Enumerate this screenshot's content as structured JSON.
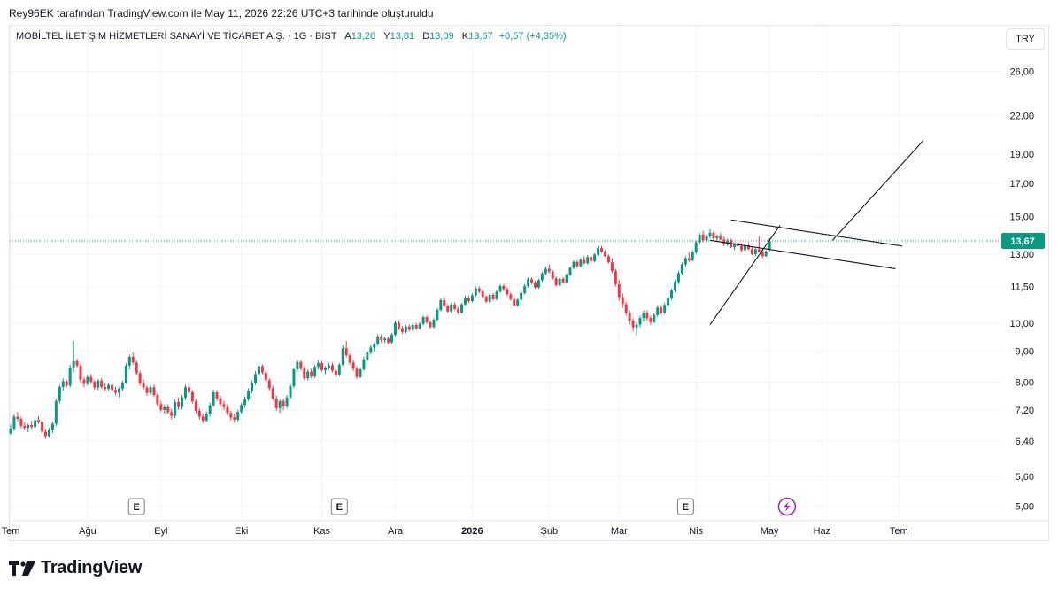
{
  "caption": "Rey96EK tarafından TradingView.com ile May 11, 2026 22:26 UTC+3 tarihinde oluşturuldu",
  "legend": {
    "name": "MOBİLTEL İLETİŞİM HİZMETLERİ SANAYİ VE TİCARET A.Ş. · 1G · BIST",
    "open_label": "A",
    "open": "13,20",
    "high_label": "Y",
    "high": "13,81",
    "low_label": "D",
    "low": "13,09",
    "close_label": "K",
    "close": "13,67",
    "change": "+0,57 (+4,35%)"
  },
  "currency": "TRY",
  "last_price_label": "13,67",
  "logo_text": "TradingView",
  "colors": {
    "up": "#089981",
    "down": "#f23645",
    "grid": "#f0f3fa",
    "text": "#131722",
    "event": "#9c27b0"
  },
  "chart_data": {
    "type": "candlestick",
    "scale": "log",
    "ylim": [
      4.7,
      29.0
    ],
    "y_ticks": [
      {
        "value": 26.0,
        "label": "26,00"
      },
      {
        "value": 22.0,
        "label": "22,00"
      },
      {
        "value": 19.0,
        "label": "19,00"
      },
      {
        "value": 17.0,
        "label": "17,00"
      },
      {
        "value": 15.0,
        "label": "15,00"
      },
      {
        "value": 13.0,
        "label": "13,00"
      },
      {
        "value": 11.5,
        "label": "11,50"
      },
      {
        "value": 10.0,
        "label": "10,00"
      },
      {
        "value": 9.0,
        "label": "9,00"
      },
      {
        "value": 8.0,
        "label": "8,00"
      },
      {
        "value": 7.2,
        "label": "7,20"
      },
      {
        "value": 6.4,
        "label": "6,40"
      },
      {
        "value": 5.6,
        "label": "5,60"
      },
      {
        "value": 5.0,
        "label": "5,00"
      }
    ],
    "x_ticks": [
      {
        "label": "Tem",
        "index": 0
      },
      {
        "label": "Ağu",
        "index": 22
      },
      {
        "label": "Eyl",
        "index": 43
      },
      {
        "label": "Eki",
        "index": 66
      },
      {
        "label": "Kas",
        "index": 89
      },
      {
        "label": "Ara",
        "index": 110
      },
      {
        "label": "2026",
        "index": 132,
        "bold": true
      },
      {
        "label": "Şub",
        "index": 154
      },
      {
        "label": "Mar",
        "index": 174
      },
      {
        "label": "Nis",
        "index": 196
      },
      {
        "label": "May",
        "index": 217
      },
      {
        "label": "Haz",
        "index": 232
      },
      {
        "label": "Tem",
        "index": 254
      }
    ],
    "events": [
      {
        "type": "E",
        "index": 36
      },
      {
        "type": "E",
        "index": 94
      },
      {
        "type": "E",
        "index": 193
      },
      {
        "type": "flash",
        "index": 222
      }
    ],
    "last_price": 13.67,
    "candles": [
      [
        6.59,
        6.82,
        6.55,
        6.71
      ],
      [
        6.71,
        7.08,
        6.65,
        7.02
      ],
      [
        7.02,
        7.15,
        6.9,
        6.96
      ],
      [
        6.96,
        7.02,
        6.72,
        6.78
      ],
      [
        6.78,
        6.88,
        6.67,
        6.73
      ],
      [
        6.73,
        6.84,
        6.62,
        6.8
      ],
      [
        6.8,
        6.91,
        6.7,
        6.75
      ],
      [
        6.75,
        6.98,
        6.72,
        6.93
      ],
      [
        6.93,
        7.03,
        6.83,
        6.88
      ],
      [
        6.88,
        6.95,
        6.59,
        6.63
      ],
      [
        6.63,
        6.7,
        6.45,
        6.52
      ],
      [
        6.52,
        6.73,
        6.48,
        6.68
      ],
      [
        6.68,
        6.88,
        6.6,
        6.83
      ],
      [
        6.83,
        7.5,
        6.78,
        7.45
      ],
      [
        7.45,
        7.92,
        7.38,
        7.86
      ],
      [
        7.86,
        8.12,
        7.75,
        8.03
      ],
      [
        8.03,
        8.08,
        7.85,
        7.9
      ],
      [
        7.9,
        8.55,
        7.84,
        8.44
      ],
      [
        8.44,
        9.35,
        8.3,
        8.67
      ],
      [
        8.67,
        8.75,
        8.45,
        8.52
      ],
      [
        8.52,
        8.6,
        8.0,
        8.08
      ],
      [
        8.08,
        8.15,
        7.85,
        7.95
      ],
      [
        7.95,
        8.22,
        7.9,
        8.16
      ],
      [
        8.16,
        8.25,
        7.95,
        8.01
      ],
      [
        8.01,
        8.06,
        7.78,
        7.84
      ],
      [
        7.84,
        8.1,
        7.75,
        8.05
      ],
      [
        8.05,
        8.12,
        7.8,
        7.86
      ],
      [
        7.86,
        7.95,
        7.74,
        7.8
      ],
      [
        7.8,
        7.98,
        7.75,
        7.92
      ],
      [
        7.92,
        7.98,
        7.72,
        7.77
      ],
      [
        7.77,
        7.86,
        7.62,
        7.69
      ],
      [
        7.69,
        7.85,
        7.55,
        7.8
      ],
      [
        7.8,
        8.05,
        7.74,
        7.99
      ],
      [
        7.99,
        8.6,
        7.95,
        8.52
      ],
      [
        8.52,
        8.88,
        8.4,
        8.81
      ],
      [
        8.81,
        8.95,
        8.55,
        8.62
      ],
      [
        8.62,
        8.7,
        8.2,
        8.28
      ],
      [
        8.28,
        8.35,
        7.9,
        7.96
      ],
      [
        7.96,
        8.08,
        7.78,
        7.84
      ],
      [
        7.84,
        7.9,
        7.6,
        7.68
      ],
      [
        7.68,
        7.92,
        7.62,
        7.85
      ],
      [
        7.85,
        7.94,
        7.56,
        7.62
      ],
      [
        7.62,
        7.68,
        7.3,
        7.36
      ],
      [
        7.36,
        7.45,
        7.15,
        7.2
      ],
      [
        7.2,
        7.34,
        7.1,
        7.28
      ],
      [
        7.28,
        7.36,
        7.08,
        7.14
      ],
      [
        7.14,
        7.22,
        6.95,
        7.04
      ],
      [
        7.04,
        7.5,
        6.98,
        7.42
      ],
      [
        7.42,
        7.55,
        7.2,
        7.28
      ],
      [
        7.28,
        7.62,
        7.22,
        7.55
      ],
      [
        7.55,
        7.92,
        7.48,
        7.85
      ],
      [
        7.85,
        7.95,
        7.62,
        7.7
      ],
      [
        7.7,
        7.76,
        7.38,
        7.44
      ],
      [
        7.44,
        7.5,
        7.1,
        7.18
      ],
      [
        7.18,
        7.25,
        6.95,
        7.02
      ],
      [
        7.02,
        7.1,
        6.85,
        6.92
      ],
      [
        6.92,
        7.16,
        6.87,
        7.1
      ],
      [
        7.1,
        7.4,
        7.02,
        7.33
      ],
      [
        7.33,
        7.78,
        7.28,
        7.7
      ],
      [
        7.7,
        7.76,
        7.45,
        7.52
      ],
      [
        7.52,
        7.6,
        7.28,
        7.36
      ],
      [
        7.36,
        7.46,
        7.2,
        7.28
      ],
      [
        7.28,
        7.36,
        7.05,
        7.12
      ],
      [
        7.12,
        7.18,
        6.92,
        7.0
      ],
      [
        7.0,
        7.1,
        6.86,
        6.94
      ],
      [
        6.94,
        7.2,
        6.88,
        7.15
      ],
      [
        7.15,
        7.4,
        7.1,
        7.34
      ],
      [
        7.34,
        7.58,
        7.26,
        7.5
      ],
      [
        7.5,
        7.82,
        7.45,
        7.74
      ],
      [
        7.74,
        8.06,
        7.68,
        7.98
      ],
      [
        7.98,
        8.34,
        7.92,
        8.25
      ],
      [
        8.25,
        8.62,
        8.18,
        8.5
      ],
      [
        8.5,
        8.56,
        8.24,
        8.3
      ],
      [
        8.3,
        8.38,
        8.0,
        8.06
      ],
      [
        8.06,
        8.12,
        7.75,
        7.82
      ],
      [
        7.82,
        7.9,
        7.46,
        7.52
      ],
      [
        7.52,
        7.6,
        7.18,
        7.25
      ],
      [
        7.25,
        7.5,
        7.12,
        7.45
      ],
      [
        7.45,
        7.52,
        7.2,
        7.3
      ],
      [
        7.3,
        7.62,
        7.24,
        7.55
      ],
      [
        7.55,
        7.95,
        7.5,
        7.88
      ],
      [
        7.88,
        8.45,
        7.82,
        8.4
      ],
      [
        8.4,
        8.72,
        8.32,
        8.64
      ],
      [
        8.64,
        8.7,
        8.36,
        8.42
      ],
      [
        8.42,
        8.5,
        8.06,
        8.12
      ],
      [
        8.12,
        8.4,
        8.05,
        8.33
      ],
      [
        8.33,
        8.42,
        8.12,
        8.18
      ],
      [
        8.18,
        8.55,
        8.12,
        8.48
      ],
      [
        8.48,
        8.7,
        8.4,
        8.6
      ],
      [
        8.6,
        8.68,
        8.32,
        8.38
      ],
      [
        8.38,
        8.5,
        8.25,
        8.44
      ],
      [
        8.44,
        8.6,
        8.38,
        8.53
      ],
      [
        8.53,
        8.62,
        8.3,
        8.36
      ],
      [
        8.36,
        8.45,
        8.15,
        8.22
      ],
      [
        8.22,
        8.6,
        8.18,
        8.55
      ],
      [
        8.55,
        9.2,
        8.5,
        9.1
      ],
      [
        9.1,
        9.35,
        8.8,
        8.86
      ],
      [
        8.86,
        8.92,
        8.55,
        8.62
      ],
      [
        8.62,
        8.7,
        8.35,
        8.42
      ],
      [
        8.42,
        8.5,
        8.1,
        8.16
      ],
      [
        8.16,
        8.45,
        8.12,
        8.4
      ],
      [
        8.4,
        8.8,
        8.35,
        8.72
      ],
      [
        8.72,
        9.0,
        8.65,
        8.95
      ],
      [
        8.95,
        9.2,
        8.88,
        9.12
      ],
      [
        9.12,
        9.3,
        9.0,
        9.24
      ],
      [
        9.24,
        9.6,
        9.18,
        9.52
      ],
      [
        9.52,
        9.6,
        9.3,
        9.38
      ],
      [
        9.38,
        9.5,
        9.28,
        9.44
      ],
      [
        9.44,
        9.5,
        9.24,
        9.3
      ],
      [
        9.3,
        9.65,
        9.25,
        9.58
      ],
      [
        9.58,
        10.1,
        9.52,
        10.02
      ],
      [
        10.02,
        10.1,
        9.75,
        9.82
      ],
      [
        9.82,
        9.9,
        9.6,
        9.68
      ],
      [
        9.68,
        9.95,
        9.62,
        9.88
      ],
      [
        9.88,
        9.96,
        9.7,
        9.76
      ],
      [
        9.76,
        10.0,
        9.7,
        9.94
      ],
      [
        9.94,
        10.02,
        9.75,
        9.81
      ],
      [
        9.81,
        10.05,
        9.76,
        9.98
      ],
      [
        9.98,
        10.3,
        9.92,
        10.24
      ],
      [
        10.24,
        10.3,
        9.98,
        10.04
      ],
      [
        10.04,
        10.1,
        9.8,
        9.86
      ],
      [
        9.86,
        10.2,
        9.8,
        10.14
      ],
      [
        10.14,
        10.6,
        10.08,
        10.52
      ],
      [
        10.52,
        11.0,
        10.46,
        10.92
      ],
      [
        10.92,
        11.05,
        10.62,
        10.68
      ],
      [
        10.68,
        10.76,
        10.4,
        10.46
      ],
      [
        10.46,
        10.8,
        10.4,
        10.74
      ],
      [
        10.74,
        10.82,
        10.5,
        10.56
      ],
      [
        10.56,
        10.65,
        10.35,
        10.42
      ],
      [
        10.42,
        10.8,
        10.38,
        10.75
      ],
      [
        10.75,
        11.1,
        10.7,
        11.02
      ],
      [
        11.02,
        11.1,
        10.8,
        10.88
      ],
      [
        10.88,
        11.2,
        10.82,
        11.12
      ],
      [
        11.12,
        11.5,
        11.06,
        11.42
      ],
      [
        11.42,
        11.5,
        11.2,
        11.28
      ],
      [
        11.28,
        11.36,
        11.0,
        11.06
      ],
      [
        11.06,
        11.12,
        10.8,
        10.86
      ],
      [
        10.86,
        11.2,
        10.8,
        11.14
      ],
      [
        11.14,
        11.22,
        10.9,
        10.96
      ],
      [
        10.96,
        11.35,
        10.9,
        11.28
      ],
      [
        11.28,
        11.6,
        11.22,
        11.52
      ],
      [
        11.52,
        11.6,
        11.3,
        11.38
      ],
      [
        11.38,
        11.46,
        11.1,
        11.16
      ],
      [
        11.16,
        11.24,
        10.9,
        10.96
      ],
      [
        10.96,
        11.04,
        10.65,
        10.7
      ],
      [
        10.7,
        11.0,
        10.64,
        10.94
      ],
      [
        10.94,
        11.3,
        10.88,
        11.22
      ],
      [
        11.22,
        11.6,
        11.16,
        11.52
      ],
      [
        11.52,
        11.9,
        11.45,
        11.82
      ],
      [
        11.82,
        11.9,
        11.6,
        11.68
      ],
      [
        11.68,
        11.76,
        11.4,
        11.46
      ],
      [
        11.46,
        11.85,
        11.4,
        11.78
      ],
      [
        11.78,
        12.15,
        11.7,
        12.08
      ],
      [
        12.08,
        12.4,
        12.0,
        12.3
      ],
      [
        12.3,
        12.5,
        12.1,
        12.16
      ],
      [
        12.16,
        12.24,
        11.8,
        11.86
      ],
      [
        11.86,
        11.94,
        11.5,
        11.55
      ],
      [
        11.55,
        11.9,
        11.5,
        11.84
      ],
      [
        11.84,
        11.92,
        11.62,
        11.68
      ],
      [
        11.68,
        12.1,
        11.62,
        12.02
      ],
      [
        12.02,
        12.4,
        11.96,
        12.34
      ],
      [
        12.34,
        12.7,
        12.28,
        12.62
      ],
      [
        12.62,
        12.7,
        12.35,
        12.42
      ],
      [
        12.42,
        12.8,
        12.36,
        12.72
      ],
      [
        12.72,
        12.9,
        12.5,
        12.56
      ],
      [
        12.56,
        12.95,
        12.5,
        12.86
      ],
      [
        12.86,
        12.94,
        12.6,
        12.66
      ],
      [
        12.66,
        13.05,
        12.6,
        12.98
      ],
      [
        12.98,
        13.4,
        12.92,
        13.3
      ],
      [
        13.3,
        13.42,
        13.05,
        13.12
      ],
      [
        13.12,
        13.2,
        12.85,
        12.9
      ],
      [
        12.9,
        12.98,
        12.55,
        12.6
      ],
      [
        12.6,
        12.8,
        12.1,
        12.2
      ],
      [
        12.2,
        12.3,
        11.5,
        11.6
      ],
      [
        11.6,
        11.8,
        10.9,
        11.05
      ],
      [
        11.05,
        11.2,
        10.6,
        10.75
      ],
      [
        10.75,
        10.85,
        10.3,
        10.4
      ],
      [
        10.4,
        10.5,
        9.95,
        10.1
      ],
      [
        10.1,
        10.2,
        9.7,
        9.85
      ],
      [
        9.85,
        10.05,
        9.55,
        9.95
      ],
      [
        9.95,
        10.3,
        9.85,
        10.2
      ],
      [
        10.2,
        10.5,
        10.05,
        10.4
      ],
      [
        10.4,
        10.5,
        10.1,
        10.2
      ],
      [
        10.2,
        10.3,
        9.95,
        10.05
      ],
      [
        10.05,
        10.4,
        10.0,
        10.32
      ],
      [
        10.32,
        10.7,
        10.25,
        10.62
      ],
      [
        10.62,
        10.7,
        10.35,
        10.42
      ],
      [
        10.42,
        10.8,
        10.36,
        10.72
      ],
      [
        10.72,
        11.1,
        10.65,
        11.0
      ],
      [
        11.0,
        11.4,
        10.92,
        11.32
      ],
      [
        11.32,
        11.8,
        11.25,
        11.7
      ],
      [
        11.7,
        12.2,
        11.6,
        12.1
      ],
      [
        12.1,
        12.6,
        12.0,
        12.5
      ],
      [
        12.5,
        12.9,
        12.4,
        12.8
      ],
      [
        12.8,
        13.1,
        12.6,
        12.7
      ],
      [
        12.7,
        13.2,
        12.65,
        13.1
      ],
      [
        13.1,
        13.7,
        13.0,
        13.6
      ],
      [
        13.6,
        14.1,
        13.5,
        14.0
      ],
      [
        14.0,
        14.2,
        13.6,
        13.7
      ],
      [
        13.7,
        14.0,
        13.6,
        13.9
      ],
      [
        13.9,
        14.3,
        13.8,
        14.1
      ],
      [
        14.1,
        14.2,
        13.7,
        13.8
      ],
      [
        13.8,
        14.0,
        13.6,
        13.9
      ],
      [
        13.9,
        14.1,
        13.7,
        13.75
      ],
      [
        13.75,
        13.9,
        13.4,
        13.5
      ],
      [
        13.5,
        13.8,
        13.4,
        13.7
      ],
      [
        13.7,
        13.8,
        13.3,
        13.35
      ],
      [
        13.35,
        13.6,
        13.2,
        13.55
      ],
      [
        13.55,
        13.7,
        13.3,
        13.4
      ],
      [
        13.4,
        13.55,
        13.1,
        13.2
      ],
      [
        13.2,
        13.5,
        13.1,
        13.45
      ],
      [
        13.45,
        13.6,
        13.2,
        13.25
      ],
      [
        13.25,
        13.4,
        12.95,
        13.0
      ],
      [
        13.0,
        13.3,
        12.9,
        13.25
      ],
      [
        13.25,
        13.9,
        13.1,
        13.1
      ],
      [
        13.1,
        13.3,
        12.8,
        12.9
      ],
      [
        12.9,
        13.2,
        12.85,
        13.1
      ],
      [
        13.2,
        13.81,
        13.09,
        13.67
      ]
    ],
    "drawings": [
      {
        "type": "line",
        "from": {
          "index": 200,
          "value": 9.95
        },
        "to": {
          "index": 220,
          "value": 14.5
        }
      },
      {
        "type": "line",
        "from": {
          "index": 206,
          "value": 14.8
        },
        "to": {
          "index": 255,
          "value": 13.4
        }
      },
      {
        "type": "line",
        "from": {
          "index": 200,
          "value": 13.7
        },
        "to": {
          "index": 253,
          "value": 12.3
        }
      },
      {
        "type": "line",
        "from": {
          "index": 235,
          "value": 13.7
        },
        "to": {
          "index": 261,
          "value": 20.0
        }
      }
    ]
  }
}
